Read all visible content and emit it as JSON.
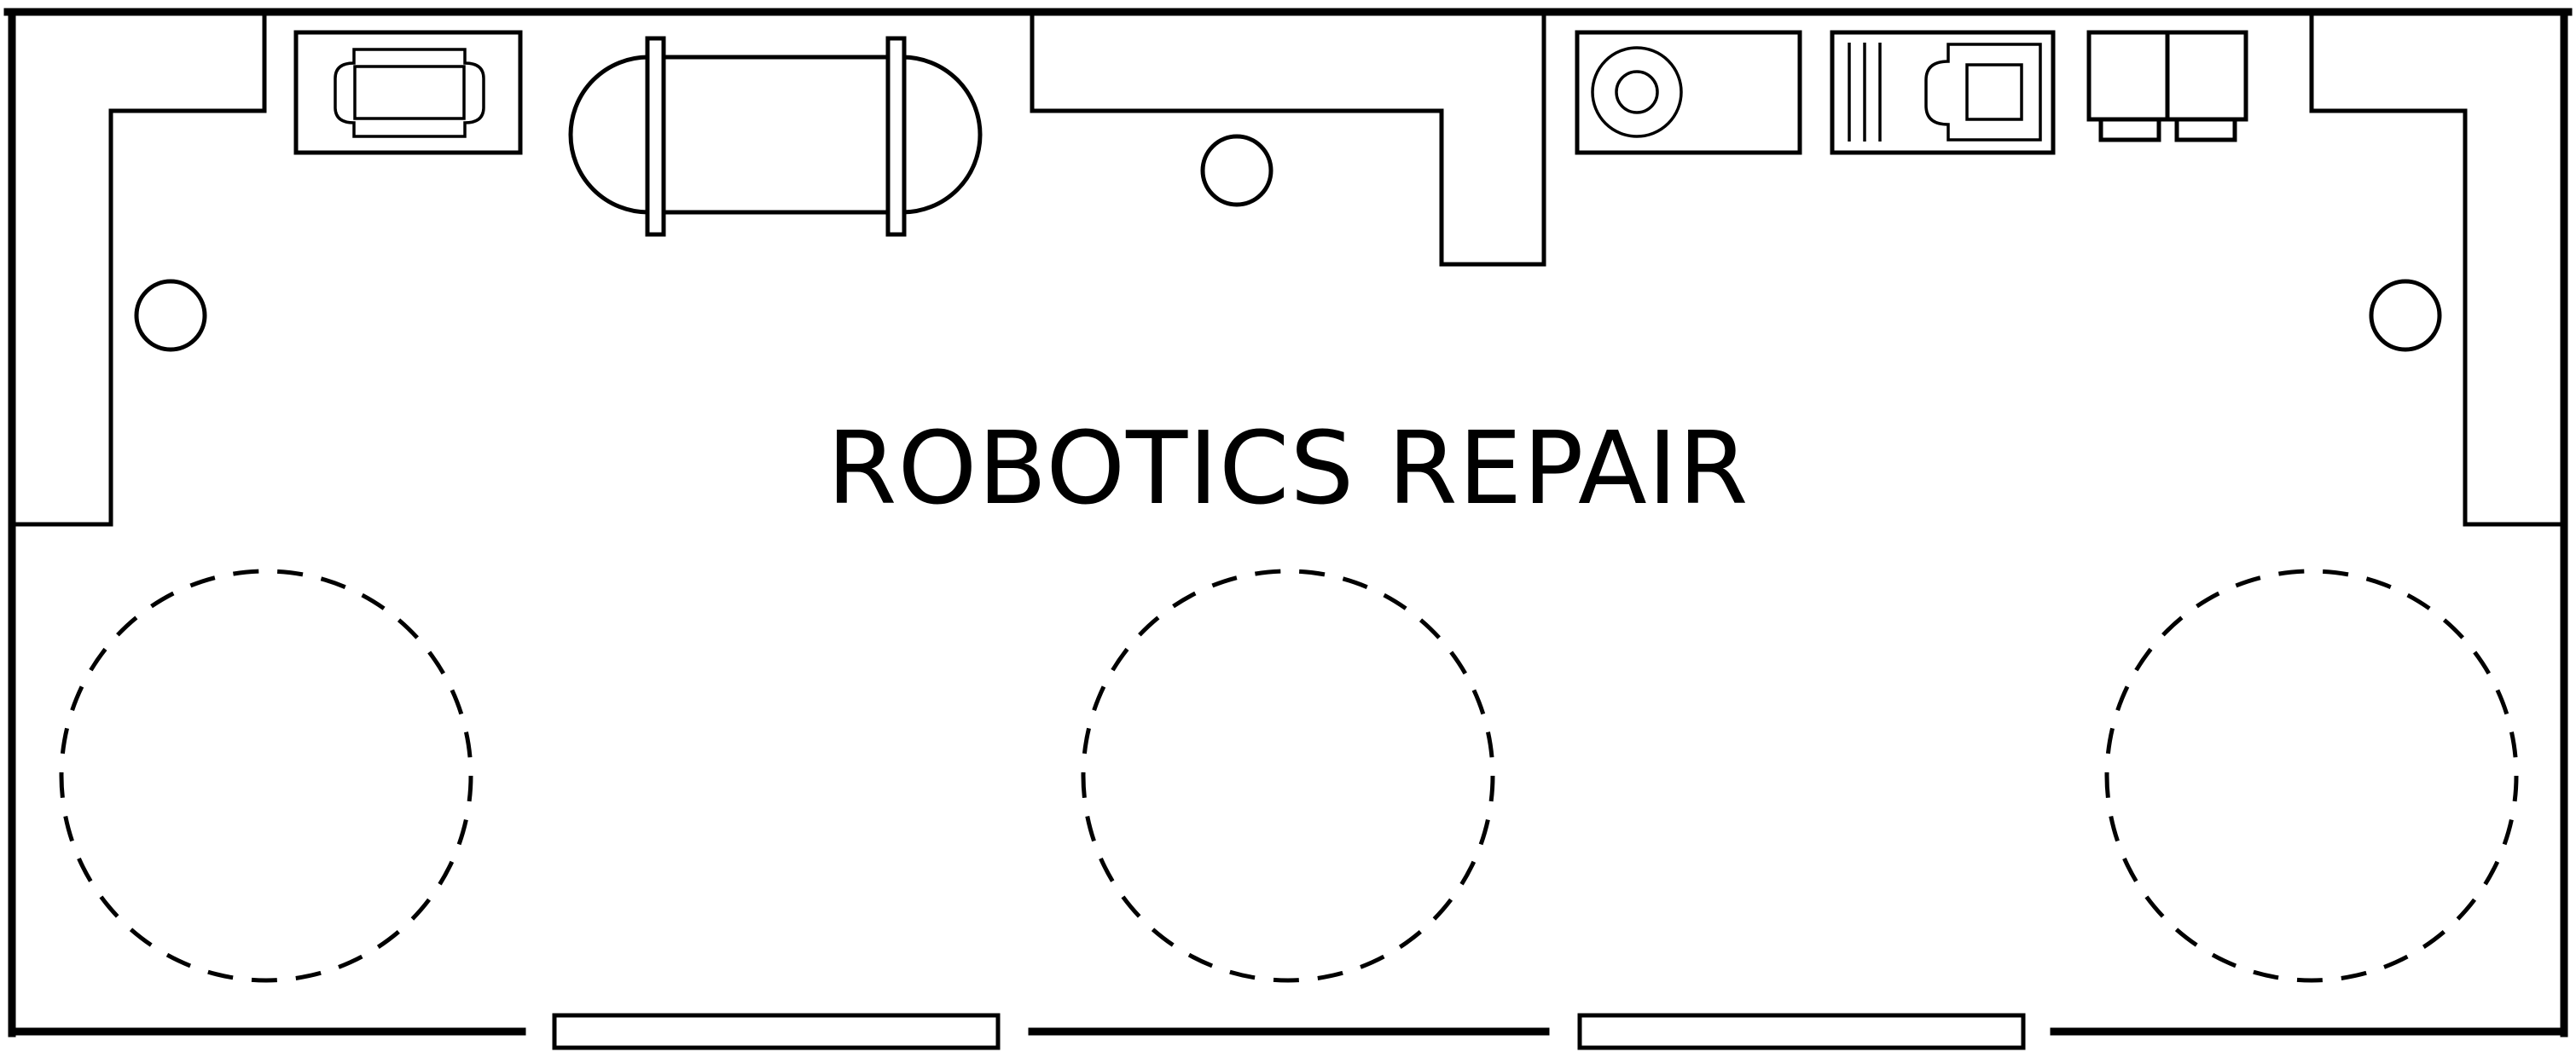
{
  "room": {
    "label": "ROBOTICS REPAIR"
  },
  "fixtures": {
    "icons": [
      "console-icon",
      "capsule-pod-icon",
      "control-panel-icon",
      "terminal-icon",
      "locker-icon"
    ]
  },
  "floor_marks": {
    "repair_circles_count": 3
  }
}
